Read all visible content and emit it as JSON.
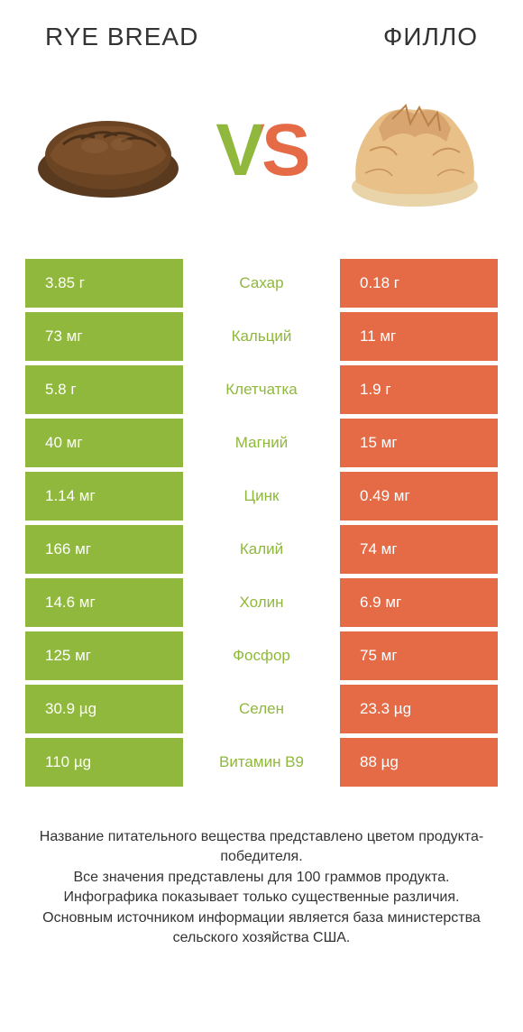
{
  "colors": {
    "green": "#8fb83d",
    "orange": "#e56b47",
    "bread_dark": "#5a3a1e",
    "bread_light": "#8b5a2b",
    "phyllo_light": "#e8c088",
    "phyllo_dark": "#c8925a"
  },
  "titles": {
    "left": "RYE BREAD",
    "right": "ФИЛЛО"
  },
  "vs": "VS",
  "rows": [
    {
      "left": "3.85 г",
      "label": "Сахар",
      "right": "0.18 г",
      "winner": "left"
    },
    {
      "left": "73 мг",
      "label": "Кальций",
      "right": "11 мг",
      "winner": "left"
    },
    {
      "left": "5.8 г",
      "label": "Клетчатка",
      "right": "1.9 г",
      "winner": "left"
    },
    {
      "left": "40 мг",
      "label": "Магний",
      "right": "15 мг",
      "winner": "left"
    },
    {
      "left": "1.14 мг",
      "label": "Цинк",
      "right": "0.49 мг",
      "winner": "left"
    },
    {
      "left": "166 мг",
      "label": "Калий",
      "right": "74 мг",
      "winner": "left"
    },
    {
      "left": "14.6 мг",
      "label": "Холин",
      "right": "6.9 мг",
      "winner": "left"
    },
    {
      "left": "125 мг",
      "label": "Фосфор",
      "right": "75 мг",
      "winner": "left"
    },
    {
      "left": "30.9 µg",
      "label": "Селен",
      "right": "23.3 µg",
      "winner": "left"
    },
    {
      "left": "110 µg",
      "label": "Витамин B9",
      "right": "88 µg",
      "winner": "left"
    }
  ],
  "footer": "Название питательного вещества представлено цветом продукта-победителя.\nВсе значения представлены для 100 граммов продукта.\nИнфографика показывает только существенные различия.\nОсновным источником информации является база министерства сельского хозяйства США."
}
